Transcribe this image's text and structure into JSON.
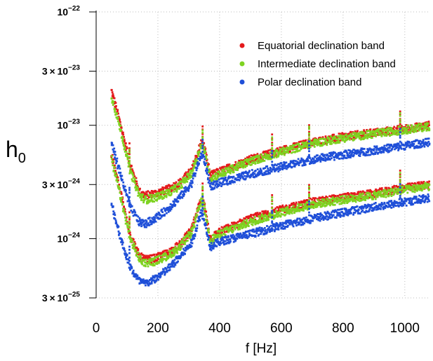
{
  "chart_data": {
    "type": "scatter",
    "title": "",
    "xlabel": "f [Hz]",
    "ylabel": "h",
    "ylabel_subscript": "0",
    "y_scale": "log",
    "xlim": [
      0,
      1080
    ],
    "ylim": [
      3e-25,
      1e-22
    ],
    "x_ticks": [
      {
        "value": 0,
        "label": "0"
      },
      {
        "value": 200,
        "label": "200"
      },
      {
        "value": 400,
        "label": "400"
      },
      {
        "value": 600,
        "label": "600"
      },
      {
        "value": 800,
        "label": "800"
      },
      {
        "value": 1000,
        "label": "1000"
      }
    ],
    "y_ticks": [
      {
        "value": 1e-22,
        "mant": "10",
        "exp": "−22"
      },
      {
        "value": 3e-23,
        "mant": "3 × 10",
        "exp": "−23"
      },
      {
        "value": 1e-23,
        "mant": "10",
        "exp": "−23"
      },
      {
        "value": 3e-24,
        "mant": "3 × 10",
        "exp": "−24"
      },
      {
        "value": 1e-24,
        "mant": "10",
        "exp": "−24"
      },
      {
        "value": 3e-25,
        "mant": "3 × 10",
        "exp": "−25"
      }
    ],
    "grid": true,
    "legend_position": "top-right",
    "series": [
      {
        "name": "Equatorial declination band",
        "color": "#e41a1c",
        "upper_curve": {
          "x": [
            50,
            80,
            110,
            140,
            160,
            190,
            230,
            270,
            310,
            340,
            350,
            370,
            400,
            500,
            600,
            700,
            800,
            900,
            1000,
            1080
          ],
          "y": [
            2e-23,
            1e-23,
            4.5e-24,
            2.6e-24,
            2.4e-24,
            2.5e-24,
            2.7e-24,
            3.1e-24,
            4e-24,
            7e-24,
            6.5e-24,
            3.6e-24,
            3.9e-24,
            5e-24,
            6e-24,
            7.1e-24,
            7.9e-24,
            8.6e-24,
            9.3e-24,
            1e-23
          ]
        },
        "lower_curve": {
          "x": [
            50,
            80,
            110,
            140,
            160,
            190,
            230,
            270,
            310,
            340,
            350,
            370,
            400,
            500,
            600,
            700,
            800,
            900,
            1000,
            1080
          ],
          "y": [
            5.5e-24,
            2.5e-24,
            1.1e-24,
            7e-25,
            6.5e-25,
            6.7e-25,
            7.4e-25,
            8.8e-25,
            1.2e-24,
            2.2e-24,
            2e-24,
            1e-24,
            1.15e-24,
            1.5e-24,
            1.8e-24,
            2.1e-24,
            2.3e-24,
            2.5e-24,
            2.8e-24,
            3e-24
          ]
        }
      },
      {
        "name": "Intermediate declination band",
        "color": "#7ed321",
        "upper_curve": {
          "x": [
            50,
            80,
            110,
            140,
            160,
            190,
            230,
            270,
            310,
            340,
            350,
            370,
            400,
            500,
            600,
            700,
            800,
            900,
            1000,
            1080
          ],
          "y": [
            1.8e-23,
            9e-24,
            4e-24,
            2.4e-24,
            2.2e-24,
            2.3e-24,
            2.5e-24,
            2.9e-24,
            3.8e-24,
            6.6e-24,
            6.1e-24,
            3.4e-24,
            3.7e-24,
            4.8e-24,
            5.8e-24,
            6.9e-24,
            7.7e-24,
            8.4e-24,
            9.1e-24,
            9.8e-24
          ]
        },
        "lower_curve": {
          "x": [
            50,
            80,
            110,
            140,
            160,
            190,
            230,
            270,
            310,
            340,
            350,
            370,
            400,
            500,
            600,
            700,
            800,
            900,
            1000,
            1080
          ],
          "y": [
            5e-24,
            2.3e-24,
            1e-24,
            6.6e-25,
            6.1e-25,
            6.3e-25,
            7e-25,
            8.3e-25,
            1.15e-24,
            2.1e-24,
            1.9e-24,
            9.6e-25,
            1.1e-24,
            1.4e-24,
            1.7e-24,
            2e-24,
            2.2e-24,
            2.4e-24,
            2.7e-24,
            2.9e-24
          ]
        }
      },
      {
        "name": "Polar declination band",
        "color": "#1f4fd8",
        "upper_curve": {
          "x": [
            50,
            80,
            110,
            140,
            160,
            190,
            230,
            270,
            310,
            340,
            350,
            370,
            400,
            500,
            600,
            700,
            800,
            900,
            1000,
            1080
          ],
          "y": [
            7e-24,
            3.6e-24,
            1.9e-24,
            1.4e-24,
            1.35e-24,
            1.5e-24,
            1.8e-24,
            2.3e-24,
            3.1e-24,
            5.5e-24,
            5e-24,
            2.9e-24,
            3.1e-24,
            3.7e-24,
            4.3e-24,
            5e-24,
            5.5e-24,
            6e-24,
            6.6e-24,
            7.1e-24
          ]
        },
        "lower_curve": {
          "x": [
            50,
            80,
            110,
            140,
            160,
            190,
            230,
            270,
            310,
            340,
            350,
            370,
            400,
            500,
            600,
            700,
            800,
            900,
            1000,
            1080
          ],
          "y": [
            2e-24,
            1e-24,
            5.6e-25,
            4.2e-25,
            4e-25,
            4.4e-25,
            5.3e-25,
            6.8e-25,
            9.2e-25,
            1.7e-24,
            1.5e-24,
            8.4e-25,
            9.4e-25,
            1.1e-24,
            1.3e-24,
            1.5e-24,
            1.7e-24,
            1.9e-24,
            2.1e-24,
            2.3e-24
          ]
        }
      }
    ],
    "spike_frequencies": [
      108,
      345,
      570,
      690,
      985
    ]
  }
}
